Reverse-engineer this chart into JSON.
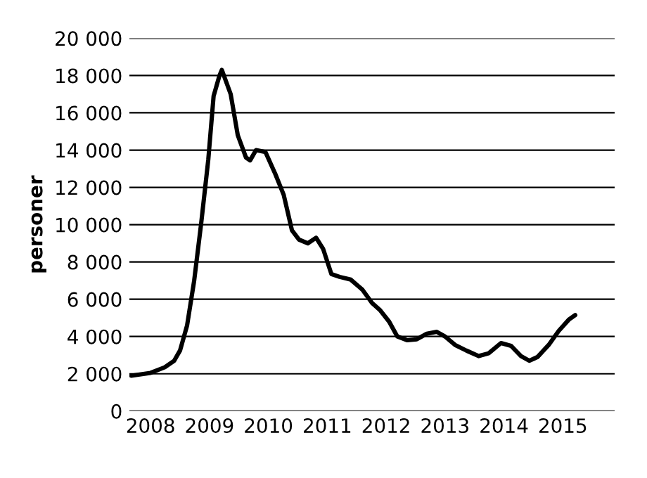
{
  "chart_data": {
    "type": "line",
    "ylabel": "personer",
    "color": "#000000",
    "x": [
      2007.67,
      2008.0,
      2008.24,
      2008.4,
      2008.5,
      2008.62,
      2008.74,
      2008.86,
      2008.98,
      2009.07,
      2009.17,
      2009.21,
      2009.36,
      2009.48,
      2009.62,
      2009.69,
      2009.79,
      2009.95,
      2010.12,
      2010.26,
      2010.4,
      2010.52,
      2010.67,
      2010.81,
      2010.93,
      2011.07,
      2011.21,
      2011.4,
      2011.6,
      2011.76,
      2011.9,
      2012.05,
      2012.19,
      2012.36,
      2012.52,
      2012.69,
      2012.86,
      2013.0,
      2013.17,
      2013.36,
      2013.57,
      2013.74,
      2013.95,
      2014.12,
      2014.29,
      2014.43,
      2014.57,
      2014.76,
      2014.93,
      2015.1,
      2015.21
    ],
    "values": [
      1900,
      2050,
      2350,
      2700,
      3250,
      4600,
      7000,
      10100,
      13500,
      16900,
      18000,
      18300,
      17000,
      14800,
      13600,
      13450,
      14000,
      13900,
      12700,
      11600,
      9700,
      9200,
      9000,
      9300,
      8700,
      7350,
      7200,
      7050,
      6500,
      5800,
      5400,
      4800,
      4000,
      3800,
      3850,
      4150,
      4250,
      4000,
      3550,
      3250,
      2950,
      3100,
      3650,
      3500,
      2950,
      2700,
      2900,
      3550,
      4300,
      4900,
      5150
    ],
    "xlim": [
      2007.64,
      2015.88
    ],
    "xticks": [
      2008,
      2009,
      2010,
      2011,
      2012,
      2013,
      2014,
      2015
    ],
    "ylim": [
      0,
      20000
    ],
    "yticks": [
      {
        "value": 0,
        "label": "0"
      },
      {
        "value": 2000,
        "label": "2 000"
      },
      {
        "value": 4000,
        "label": "4 000"
      },
      {
        "value": 6000,
        "label": "6 000"
      },
      {
        "value": 8000,
        "label": "8 000"
      },
      {
        "value": 10000,
        "label": "10 000"
      },
      {
        "value": 12000,
        "label": "12 000"
      },
      {
        "value": 14000,
        "label": "14 000"
      },
      {
        "value": 16000,
        "label": "16 000"
      },
      {
        "value": 18000,
        "label": "18 000"
      },
      {
        "value": 20000,
        "label": "20 000"
      }
    ],
    "grid": "y",
    "marker": "none",
    "line_style": "solid"
  }
}
